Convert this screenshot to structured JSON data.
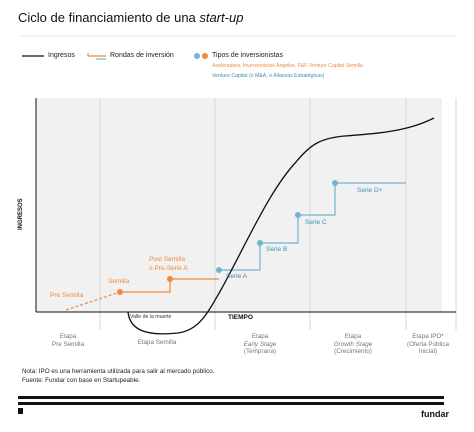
{
  "title": {
    "main": "Ciclo de financiamiento de una ",
    "italic": "start-up"
  },
  "legend": {
    "ingresos": "Ingresos",
    "rondas": "Rondas de inversión",
    "tipos": "Tipos de inversionistas",
    "orange_types": "Aceleradora, Inversionistas Ángeles, F&F Venture Capital Semilla",
    "blue_types": "Venture Capital (o M&A, o Alianzas Estratégicas)"
  },
  "axes": {
    "y_label": "INGRESOS",
    "x_label": "TIEMPO"
  },
  "annotations": {
    "valley": "Valle de la muerte",
    "pre_semilla": "Pre Semilla",
    "semilla": "Semilla",
    "post_semilla_1": "Post Semilla",
    "post_semilla_2": "o Pre-Serie A",
    "serie_a": "Serie A",
    "serie_b": "Serie B",
    "serie_c": "Serie C",
    "serie_d": "Serie D+"
  },
  "stages": [
    {
      "line1": "Etapa",
      "line2": "Pre Semilla",
      "line3": ""
    },
    {
      "line1": "",
      "line2": "Etapa Semilla",
      "line3": ""
    },
    {
      "line1": "Etapa",
      "line2": "Early Stage",
      "line3": "(Temprana)"
    },
    {
      "line1": "Etapa",
      "line2": "Growth Stage",
      "line3": "(Crecimiento)"
    },
    {
      "line1": "Etapa IPO*",
      "line2": "(Oferta Pública",
      "line3": "Inicial)"
    }
  ],
  "notes": {
    "note": "Nota: IPO es una herramienta utilizada para salir al mercado público.",
    "source": "Fuente: Fundar con base en Startupeable."
  },
  "brand": "fundar",
  "colors": {
    "orange": "#f08a3c",
    "blue": "#6fb6cf",
    "blue_text": "#3f8fb0",
    "grid": "#dcdcdc",
    "line": "#111111"
  }
}
